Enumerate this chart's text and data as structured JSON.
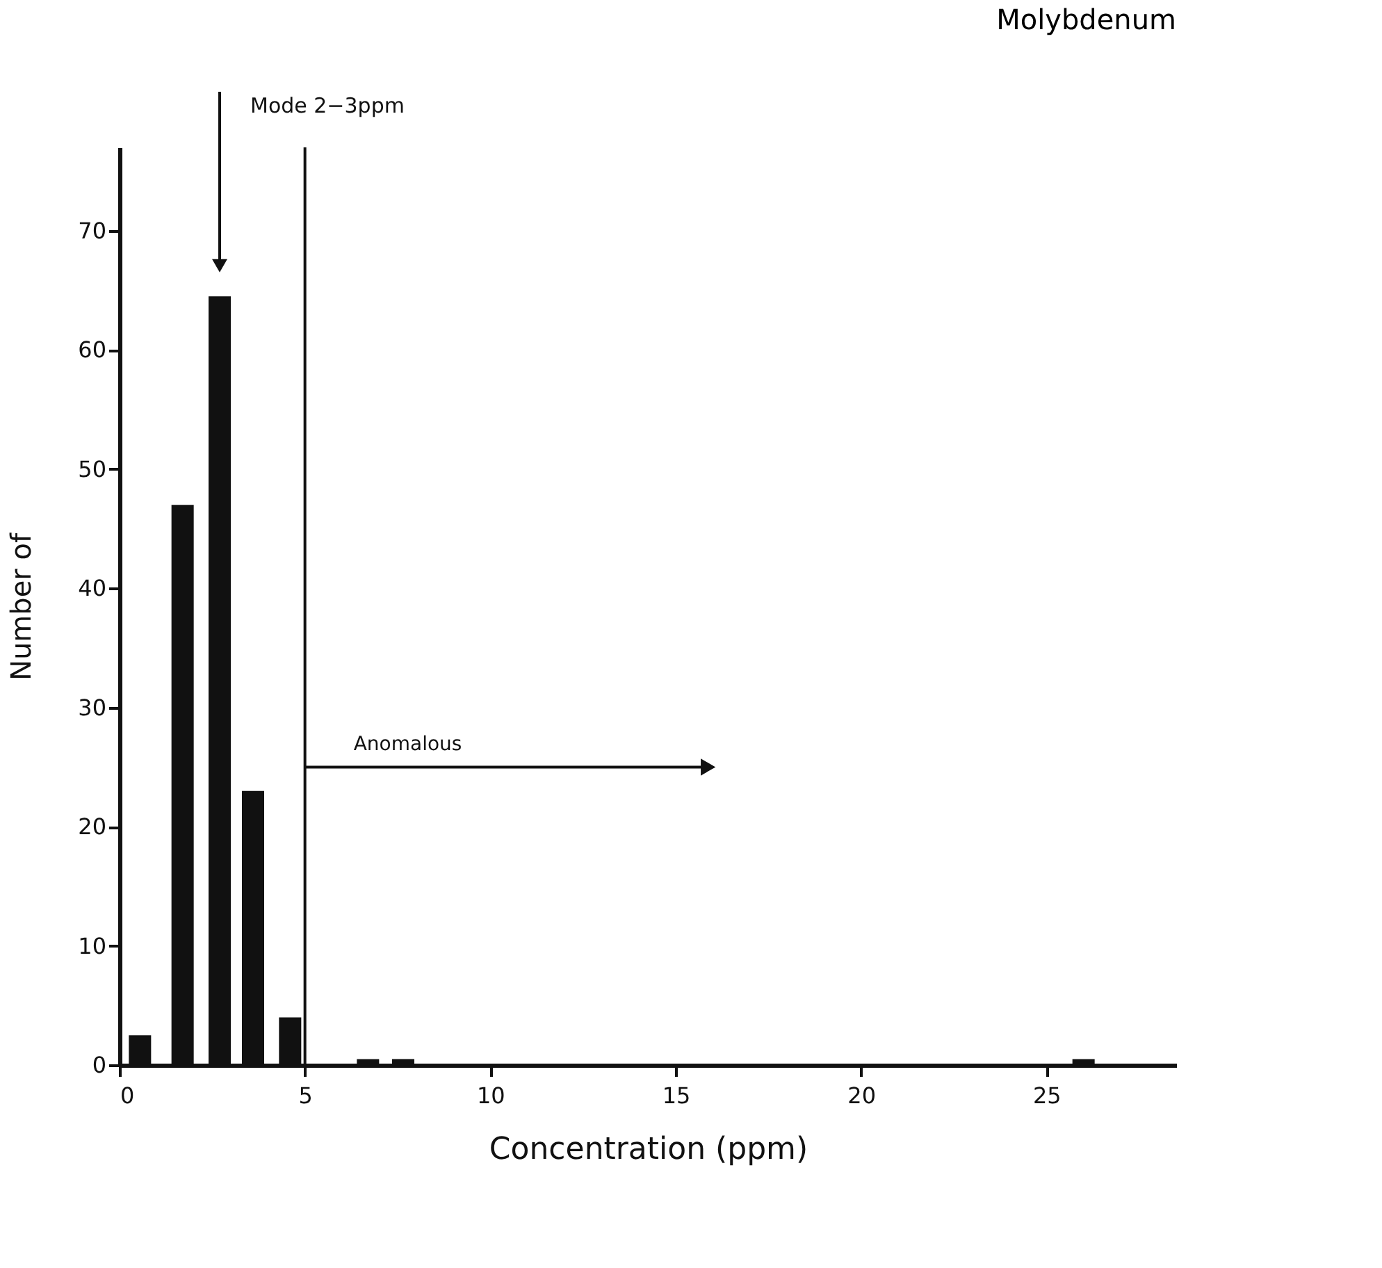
{
  "chart_data": {
    "type": "bar",
    "title": "Molybdenum",
    "xlabel": "Concentration (ppm)",
    "ylabel": "Number of",
    "x": [
      0.55,
      1.7,
      2.7,
      3.6,
      4.6,
      6.7,
      7.65,
      26
    ],
    "values": [
      2.5,
      47,
      64.5,
      23,
      4,
      0.5,
      0.5,
      0.5
    ],
    "color": "#111111",
    "xlim": [
      0,
      28.5
    ],
    "xticks": [
      0,
      5,
      10,
      15,
      20,
      25
    ],
    "ylim": [
      0,
      77
    ],
    "yticks": [
      0,
      10,
      20,
      30,
      40,
      50,
      60,
      70
    ],
    "grid": false,
    "annotations": [
      "Mode 2−3ppm",
      {
        "text": "Anomalous",
        "x": 5,
        "y": 25
      }
    ],
    "ref_lines": [
      {
        "axis": "x",
        "value": 5
      }
    ]
  }
}
